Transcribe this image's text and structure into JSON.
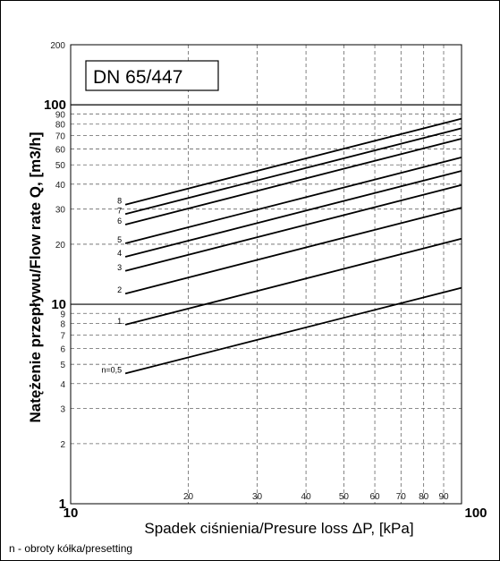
{
  "chart_data": {
    "type": "line",
    "title": "DN 65/447",
    "xlabel": "Spadek ciśnienia/Presure loss ΔP, [kPa]",
    "ylabel": "Natężenie przepływu/Flow rate Q, [m3/h]",
    "xscale": "log",
    "yscale": "log",
    "xlim": [
      10,
      100
    ],
    "ylim": [
      1,
      200
    ],
    "grid": true,
    "x_ticks": [
      "10",
      "20",
      "30",
      "40",
      "50",
      "60",
      "70",
      "80",
      "90",
      "100"
    ],
    "y_ticks": [
      "1",
      "2",
      "3",
      "4",
      "5",
      "6",
      "7",
      "8",
      "9",
      "10",
      "20",
      "30",
      "40",
      "50",
      "60",
      "70",
      "80",
      "90",
      "100",
      "200"
    ],
    "x": [
      13.8,
      100
    ],
    "series": [
      {
        "name": "n=0,5",
        "values": [
          4.5,
          12.1
        ]
      },
      {
        "name": "1",
        "values": [
          7.9,
          21.3
        ]
      },
      {
        "name": "2",
        "values": [
          11.3,
          30.5
        ]
      },
      {
        "name": "3",
        "values": [
          14.7,
          39.6
        ]
      },
      {
        "name": "4",
        "values": [
          17.3,
          46.6
        ]
      },
      {
        "name": "5",
        "values": [
          20.2,
          54.5
        ]
      },
      {
        "name": "6",
        "values": [
          25.1,
          67.6
        ]
      },
      {
        "name": "7",
        "values": [
          28.3,
          76.2
        ]
      },
      {
        "name": "8",
        "values": [
          31.6,
          85.2
        ]
      }
    ]
  },
  "footnote": "n - obroty kółka/presetting"
}
